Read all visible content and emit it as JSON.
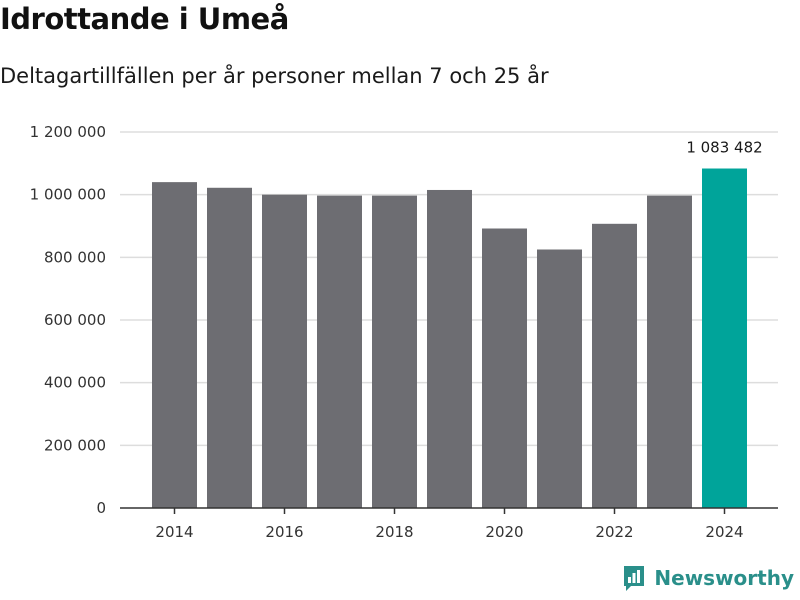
{
  "header": {
    "title": "Idrottande i Umeå",
    "subtitle": "Deltagartillfällen per år personer mellan 7 och 25 år"
  },
  "brand": {
    "name": "Newsworthy",
    "logo_icon": "newsworthy-chart-icon",
    "color": "#2a8f8a"
  },
  "colors": {
    "bar": "#6d6d72",
    "highlight": "#00a49a",
    "grid": "#dddddd",
    "axis": "#333333"
  },
  "chart_data": {
    "type": "bar",
    "title": "Idrottande i Umeå",
    "subtitle": "Deltagartillfällen per år personer mellan 7 och 25 år",
    "xlabel": "",
    "ylabel": "",
    "categories": [
      2014,
      2015,
      2016,
      2017,
      2018,
      2019,
      2020,
      2021,
      2022,
      2023,
      2024
    ],
    "values": [
      1040000,
      1022000,
      1000000,
      997000,
      997000,
      1015000,
      892000,
      825000,
      907000,
      997000,
      1083482
    ],
    "highlight_index": 10,
    "highlight_label": "1 083 482",
    "xticks": [
      2014,
      2016,
      2018,
      2020,
      2022,
      2024
    ],
    "xtick_labels": [
      "2014",
      "2016",
      "2018",
      "2020",
      "2022",
      "2024"
    ],
    "yticks": [
      0,
      200000,
      400000,
      600000,
      800000,
      1000000,
      1200000
    ],
    "ytick_labels": [
      "0",
      "200 000",
      "400 000",
      "600 000",
      "800 000",
      "1 000 000",
      "1 200 000"
    ],
    "ylim": [
      0,
      1200000
    ],
    "grid": true,
    "legend": "none"
  }
}
